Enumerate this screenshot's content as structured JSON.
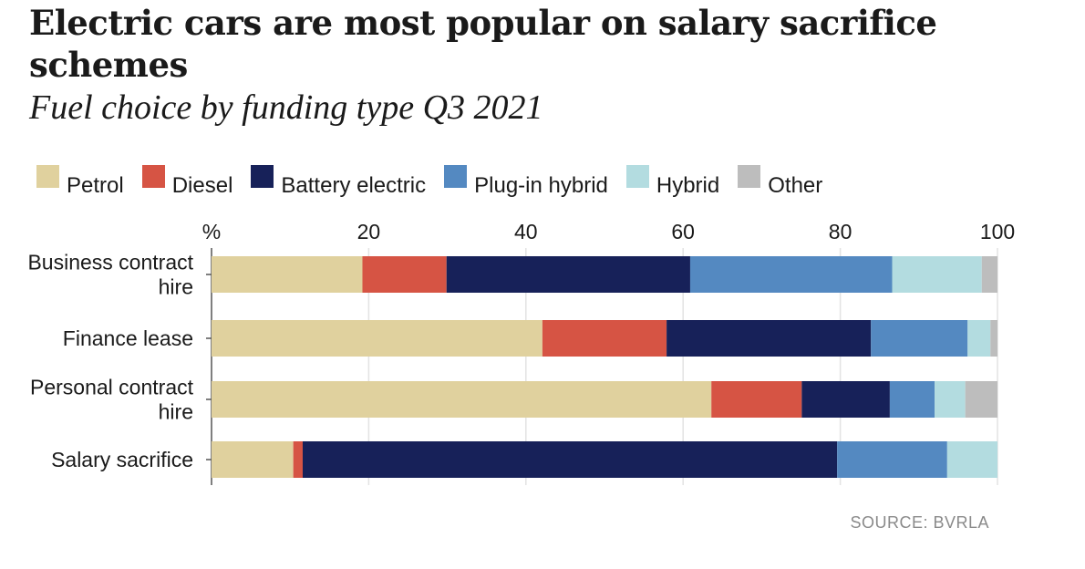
{
  "title": "Electric cars are most popular on salary sacrifice schemes",
  "subtitle": "Fuel choice by funding type Q3 2021",
  "source": "SOURCE: BVRLA",
  "chart_data": {
    "type": "bar",
    "orientation": "horizontal",
    "stacked": true,
    "title": "Electric cars are most popular on salary sacrifice schemes",
    "subtitle": "Fuel choice by funding type Q3 2021",
    "xlabel": "%",
    "xlim": [
      0,
      100
    ],
    "xticks": [
      0,
      20,
      40,
      60,
      80,
      100
    ],
    "xtick_labels": [
      "%",
      "20",
      "40",
      "60",
      "80",
      "100"
    ],
    "grid": true,
    "legend_position": "top",
    "categories": [
      [
        "Business contract",
        "hire"
      ],
      [
        "Finance lease"
      ],
      [
        "Personal contract",
        "hire"
      ],
      [
        "Salary sacrifice"
      ]
    ],
    "series": [
      {
        "name": "Petrol",
        "color": "#e0d19e",
        "values": [
          19.2,
          42.1,
          63.6,
          10.4
        ]
      },
      {
        "name": "Diesel",
        "color": "#d65444",
        "values": [
          10.7,
          15.8,
          11.5,
          1.2
        ]
      },
      {
        "name": "Battery electric",
        "color": "#172159",
        "values": [
          31.0,
          26.0,
          11.2,
          68.0
        ]
      },
      {
        "name": "Plug-in hybrid",
        "color": "#5489c1",
        "values": [
          25.7,
          12.3,
          5.7,
          14.0
        ]
      },
      {
        "name": "Hybrid",
        "color": "#b3dce0",
        "values": [
          11.4,
          2.9,
          3.9,
          6.4
        ]
      },
      {
        "name": "Other",
        "color": "#bdbdbd",
        "values": [
          2.0,
          0.9,
          4.1,
          0.0
        ]
      }
    ]
  }
}
